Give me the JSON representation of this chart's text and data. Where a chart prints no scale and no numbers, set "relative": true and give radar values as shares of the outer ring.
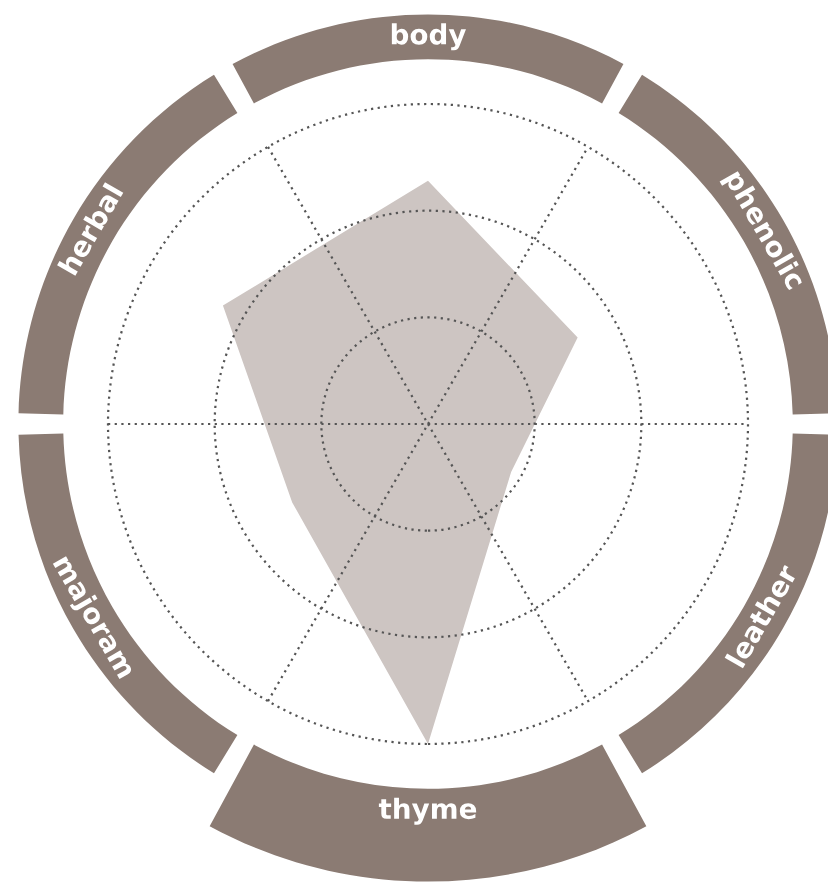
{
  "chart_data": {
    "type": "radar",
    "relative": true,
    "grid": true,
    "categories": [
      "body",
      "phenolic",
      "leather",
      "thyme",
      "majoram",
      "herbal"
    ],
    "series": [
      {
        "color": "#cdc5c2",
        "values": [
          0.76,
          0.54,
          0.3,
          1.0,
          0.49,
          0.74
        ]
      }
    ]
  }
}
